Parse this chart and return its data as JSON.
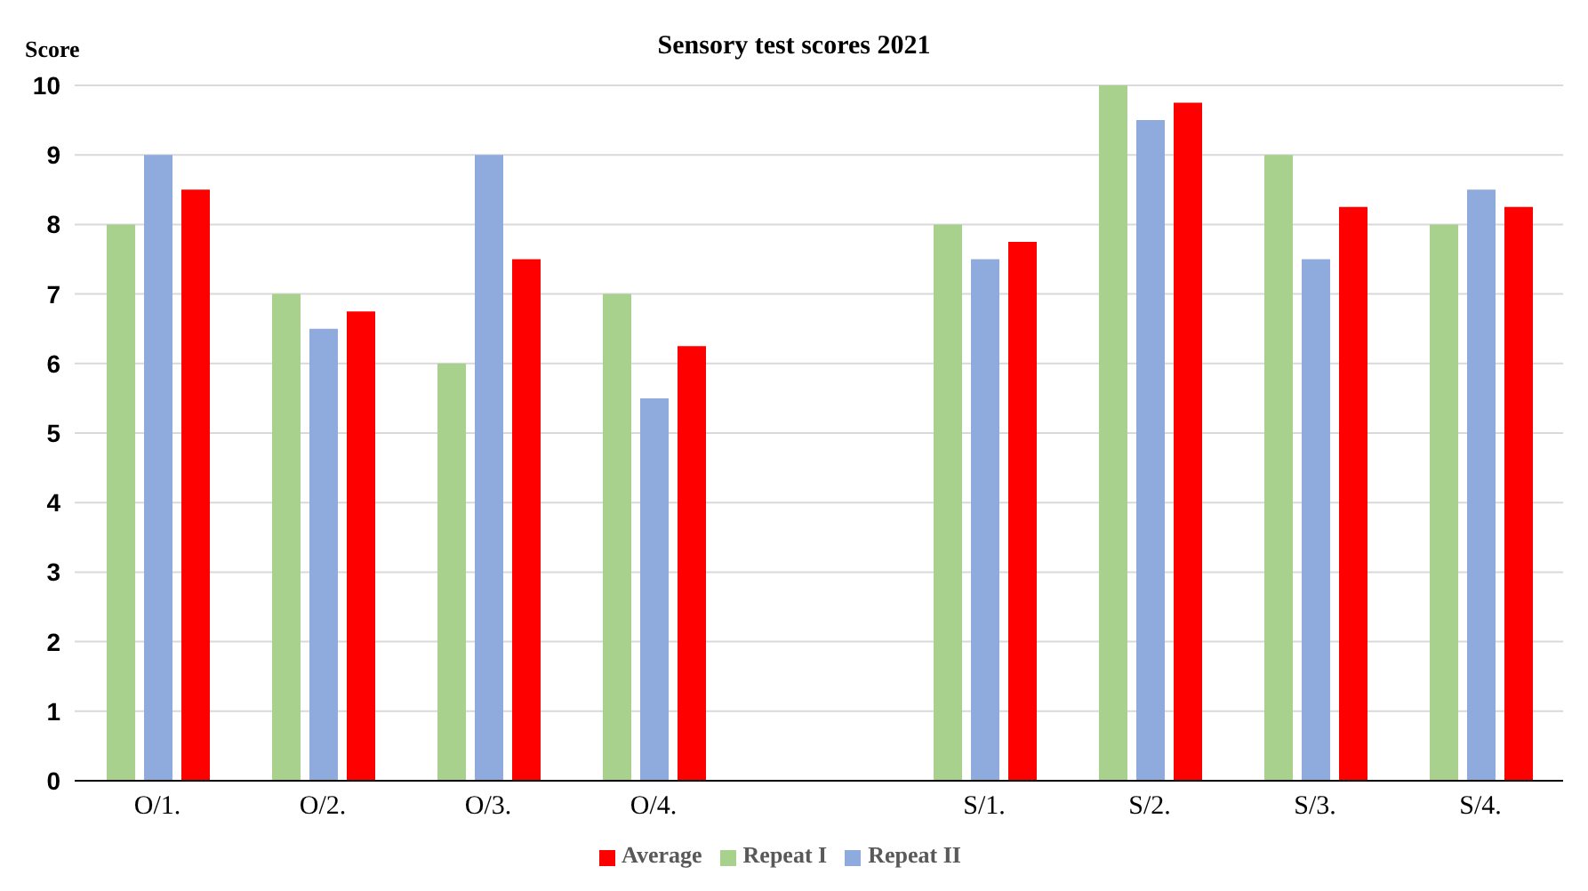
{
  "chart_data": {
    "type": "bar",
    "title": "Sensory test scores 2021",
    "ylabel": "Score",
    "categories": [
      "O/1.",
      "O/2.",
      "O/3.",
      "O/4.",
      null,
      "S/1.",
      "S/2.",
      "S/3.",
      "S/4."
    ],
    "series": [
      {
        "name": "Repeat I",
        "color": "#a9d18e",
        "values": [
          8,
          7,
          6,
          7,
          null,
          8,
          10,
          9,
          8
        ]
      },
      {
        "name": "Repeat II",
        "color": "#8faadc",
        "values": [
          9,
          6.5,
          9,
          5.5,
          null,
          7.5,
          9.5,
          7.5,
          8.5
        ]
      },
      {
        "name": "Average",
        "color": "#ff0000",
        "values": [
          8.5,
          6.75,
          7.5,
          6.25,
          null,
          7.75,
          9.75,
          8.25,
          8.25
        ]
      }
    ],
    "ylim": [
      0,
      10
    ],
    "yticks": [
      0,
      1,
      2,
      3,
      4,
      5,
      6,
      7,
      8,
      9,
      10
    ],
    "grid": "y",
    "legend": "bottom"
  }
}
